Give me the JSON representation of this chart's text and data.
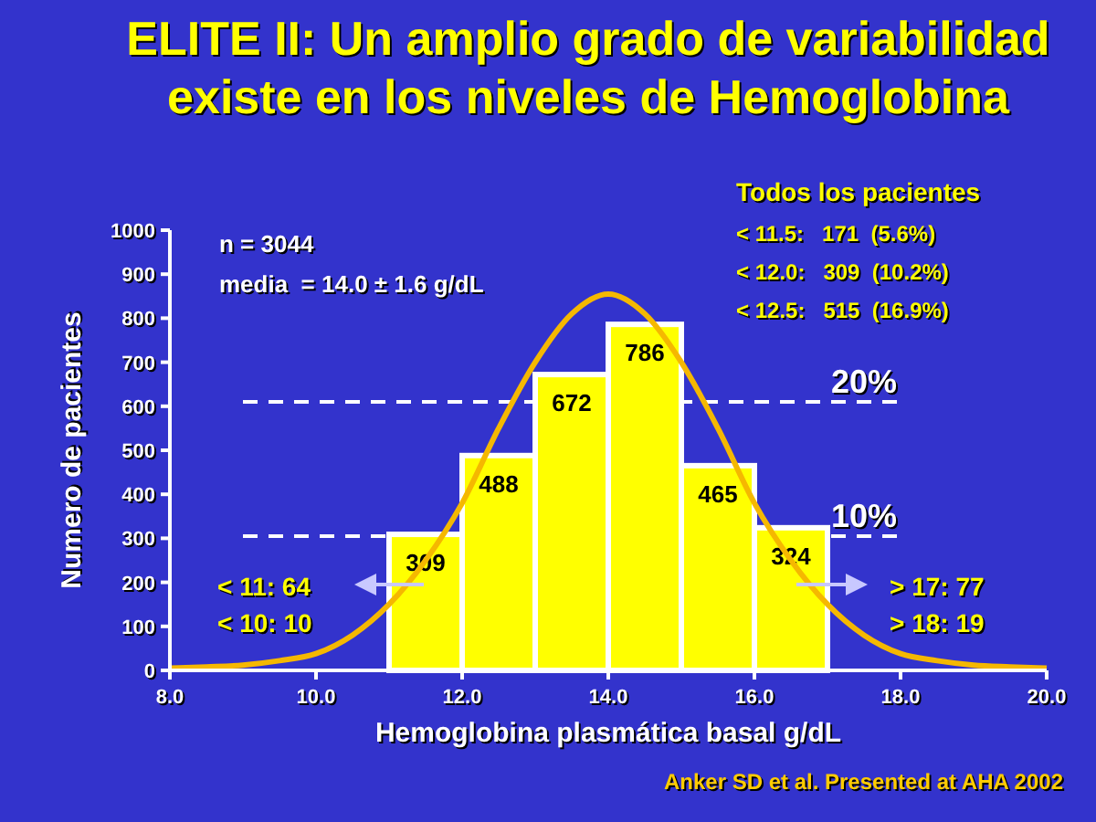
{
  "chart_data": {
    "type": "histogram",
    "title": "ELITE II: Un amplio grado de variabilidad existe en los niveles de Hemoglobina",
    "xlabel": "Hemoglobina plasmática basal   g/dL",
    "ylabel": "Numero de pacientes",
    "xlim": [
      8,
      20
    ],
    "ylim": [
      0,
      1000
    ],
    "xticks": [
      {
        "value": 8,
        "label": "8.0"
      },
      {
        "value": 10,
        "label": "10.0"
      },
      {
        "value": 12,
        "label": "12.0"
      },
      {
        "value": 14,
        "label": "14.0"
      },
      {
        "value": 16,
        "label": "16.0"
      },
      {
        "value": 18,
        "label": "18.0"
      },
      {
        "value": 20,
        "label": "20.0"
      }
    ],
    "yticks": [
      0,
      100,
      200,
      300,
      400,
      500,
      600,
      700,
      800,
      900,
      1000
    ],
    "series": [
      {
        "color": "#ffff00",
        "bins": [
          11,
          12,
          13,
          14,
          15,
          16,
          17
        ],
        "values": [
          309,
          488,
          672,
          786,
          465,
          324
        ],
        "value_labels": [
          "309",
          "488",
          "672",
          "786",
          "465",
          "324"
        ]
      },
      {
        "type": "line",
        "color": "#f5b800",
        "x": [
          8,
          8.5,
          9,
          9.5,
          10,
          10.5,
          11,
          11.5,
          12,
          12.5,
          13,
          13.5,
          14,
          14.5,
          15,
          15.5,
          16,
          16.5,
          17,
          17.5,
          18,
          18.5,
          19,
          19.5,
          20
        ],
        "values": [
          5,
          8,
          12,
          22,
          38,
          80,
          150,
          250,
          380,
          550,
          700,
          810,
          855,
          810,
          700,
          550,
          380,
          250,
          150,
          80,
          38,
          22,
          12,
          8,
          5
        ]
      }
    ],
    "ref_lines": [
      {
        "axis": "y",
        "value": 610,
        "line_style": "dashed",
        "color": "#ffffff"
      },
      {
        "axis": "y",
        "value": 305,
        "line_style": "dashed",
        "color": "#ffffff"
      }
    ],
    "annotations": [
      {
        "text": "20%",
        "x": 17.5,
        "y": 610
      },
      {
        "text": "10%",
        "x": 17.5,
        "y": 305
      },
      "n = 3044",
      "media  = 14.0 ± 1.6 g/dL",
      "Todos los pacientes",
      "< 11.5:   171  (5.6%)",
      "< 12.0:   309  (10.2%)",
      "< 12.5:   515  (16.9%)",
      "< 11: 64",
      "< 10: 10",
      "> 17: 77",
      "> 18: 19",
      "Anker SD et al. Presented at AHA 2002"
    ]
  }
}
